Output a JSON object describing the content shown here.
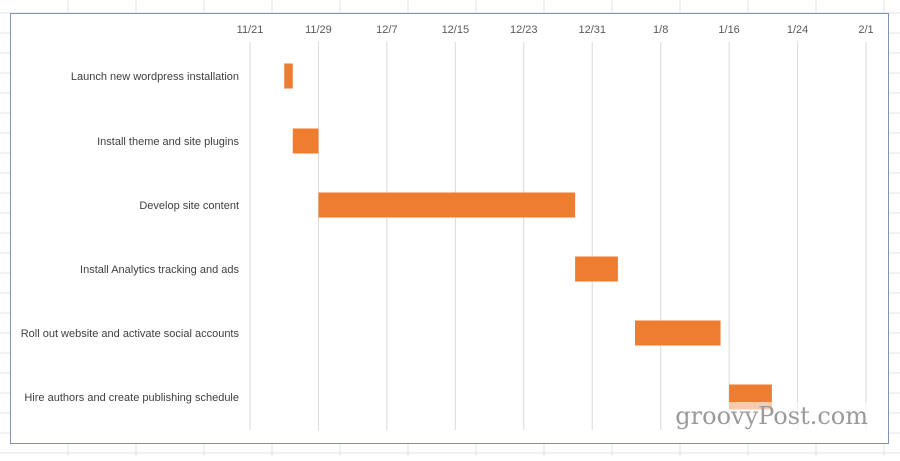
{
  "watermark": "groovyPost.com",
  "colors": {
    "bar": "#ed7d31",
    "gridline": "#d9d9d9",
    "cell_grid": "#e3e3e3",
    "frame": "#7f93b3"
  },
  "chart_data": {
    "type": "bar",
    "orientation": "horizontal",
    "style": "gantt",
    "title": "",
    "xlabel": "",
    "ylabel": "",
    "x_axis_position": "top",
    "grid": true,
    "legend": "none",
    "x_tick_labels": [
      "11/21",
      "11/29",
      "12/7",
      "12/15",
      "12/23",
      "12/31",
      "1/8",
      "1/16",
      "1/24",
      "2/1"
    ],
    "xlim": [
      "11/21",
      "2/1"
    ],
    "categories": [
      "Launch new wordpress installation",
      "Install theme and site plugins",
      "Develop site content",
      "Install Analytics tracking and ads",
      "Roll out website and activate social accounts",
      "Hire authors and create publishing schedule"
    ],
    "series": [
      {
        "start": [
          "11/25",
          "11/26",
          "11/29",
          "12/29",
          "1/5",
          "1/16"
        ],
        "end": [
          "11/26",
          "11/29",
          "12/29",
          "1/3",
          "1/15",
          "1/21"
        ]
      }
    ]
  }
}
